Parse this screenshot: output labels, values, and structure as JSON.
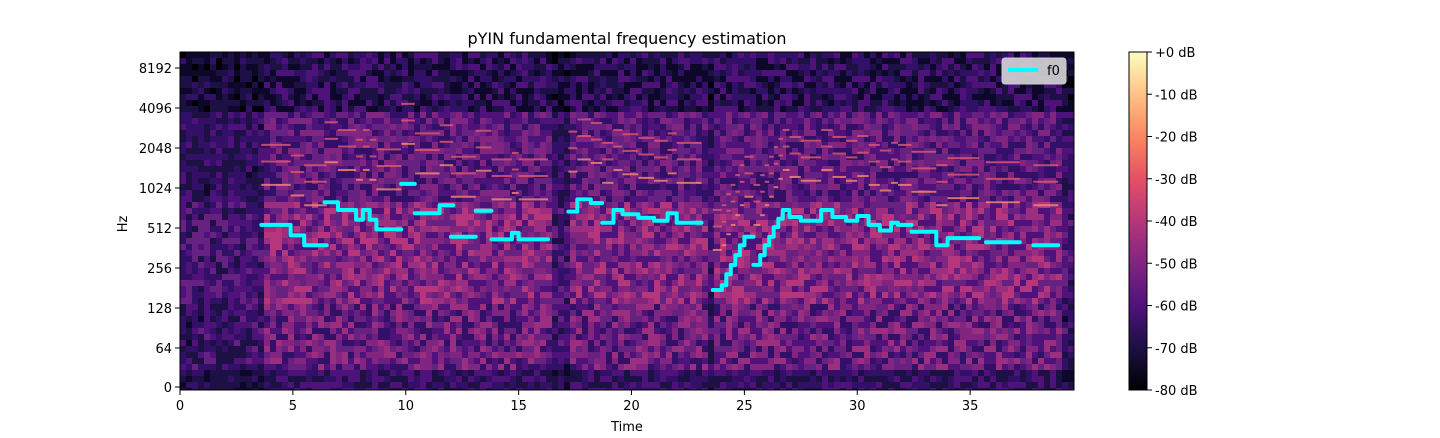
{
  "chart_data": {
    "type": "heatmap",
    "title": "pYIN fundamental frequency estimation",
    "xlabel": "Time",
    "ylabel": "Hz",
    "xlim": [
      0,
      39.6
    ],
    "y_scale": "log2 (with 0 at bottom)",
    "x_ticks": [
      0,
      5,
      10,
      15,
      20,
      25,
      30,
      35
    ],
    "x_tick_labels": [
      "0",
      "5",
      "10",
      "15",
      "20",
      "25",
      "30",
      "35"
    ],
    "y_ticks": [
      0,
      64,
      128,
      256,
      512,
      1024,
      2048,
      4096,
      8192
    ],
    "y_tick_labels": [
      "0",
      "64",
      "128",
      "256",
      "512",
      "1024",
      "2048",
      "4096",
      "8192"
    ],
    "colorbar": {
      "colormap": "magma",
      "range_db": [
        -80,
        0
      ],
      "tick_labels": [
        "+0 dB",
        "-10 dB",
        "-20 dB",
        "-30 dB",
        "-40 dB",
        "-50 dB",
        "-60 dB",
        "-70 dB",
        "-80 dB"
      ]
    },
    "legend": {
      "position": "upper-right",
      "entries": [
        "f0"
      ]
    },
    "series": [
      {
        "name": "f0",
        "color": "#00ffff",
        "segments": [
          [
            [
              3.6,
              540
            ],
            [
              4.9,
              540
            ],
            [
              4.9,
              450
            ],
            [
              5.5,
              450
            ],
            [
              5.5,
              380
            ],
            [
              6.5,
              380
            ]
          ],
          [
            [
              6.4,
              800
            ],
            [
              7.0,
              800
            ],
            [
              7.0,
              700
            ],
            [
              7.8,
              700
            ],
            [
              7.8,
              590
            ],
            [
              8.1,
              590
            ],
            [
              8.1,
              700
            ],
            [
              8.4,
              700
            ],
            [
              8.4,
              590
            ],
            [
              8.7,
              590
            ],
            [
              8.7,
              500
            ],
            [
              9.8,
              500
            ]
          ],
          [
            [
              9.8,
              1100
            ],
            [
              10.4,
              1100
            ]
          ],
          [
            [
              10.4,
              660
            ],
            [
              11.5,
              660
            ],
            [
              11.5,
              760
            ],
            [
              12.1,
              760
            ]
          ],
          [
            [
              12.0,
              440
            ],
            [
              13.1,
              440
            ]
          ],
          [
            [
              13.1,
              690
            ],
            [
              13.8,
              690
            ]
          ],
          [
            [
              13.8,
              420
            ],
            [
              14.7,
              420
            ],
            [
              14.7,
              470
            ],
            [
              15.0,
              470
            ],
            [
              15.0,
              420
            ],
            [
              16.3,
              420
            ]
          ],
          [
            [
              17.2,
              680
            ],
            [
              17.6,
              680
            ],
            [
              17.6,
              840
            ],
            [
              18.2,
              840
            ],
            [
              18.2,
              790
            ],
            [
              18.7,
              790
            ]
          ],
          [
            [
              18.7,
              560
            ],
            [
              19.2,
              560
            ],
            [
              19.2,
              700
            ],
            [
              19.6,
              700
            ],
            [
              19.6,
              650
            ],
            [
              20.3,
              650
            ],
            [
              20.3,
              610
            ],
            [
              21.0,
              610
            ],
            [
              21.0,
              580
            ],
            [
              21.6,
              580
            ],
            [
              21.6,
              660
            ],
            [
              22.0,
              660
            ],
            [
              22.0,
              560
            ],
            [
              23.1,
              560
            ]
          ],
          [
            [
              23.6,
              175
            ],
            [
              24.0,
              175
            ],
            [
              24.0,
              190
            ],
            [
              24.2,
              190
            ],
            [
              24.2,
              230
            ],
            [
              24.4,
              230
            ],
            [
              24.4,
              270
            ],
            [
              24.6,
              270
            ],
            [
              24.6,
              320
            ],
            [
              24.8,
              320
            ],
            [
              24.8,
              380
            ],
            [
              25.0,
              380
            ],
            [
              25.0,
              440
            ],
            [
              25.4,
              440
            ]
          ],
          [
            [
              25.4,
              270
            ],
            [
              25.7,
              270
            ],
            [
              25.7,
              320
            ],
            [
              25.9,
              320
            ],
            [
              25.9,
              380
            ],
            [
              26.1,
              380
            ],
            [
              26.1,
              440
            ],
            [
              26.3,
              440
            ],
            [
              26.3,
              520
            ],
            [
              26.5,
              520
            ],
            [
              26.5,
              600
            ],
            [
              26.7,
              600
            ],
            [
              26.7,
              700
            ],
            [
              27.0,
              700
            ],
            [
              27.0,
              620
            ],
            [
              27.5,
              620
            ],
            [
              27.5,
              580
            ],
            [
              28.4,
              580
            ],
            [
              28.4,
              700
            ],
            [
              28.9,
              700
            ],
            [
              28.9,
              620
            ],
            [
              29.5,
              620
            ],
            [
              29.5,
              580
            ],
            [
              30.0,
              580
            ],
            [
              30.0,
              630
            ],
            [
              30.5,
              630
            ],
            [
              30.5,
              540
            ],
            [
              31.0,
              540
            ],
            [
              31.0,
              490
            ],
            [
              31.5,
              490
            ],
            [
              31.5,
              560
            ],
            [
              31.8,
              560
            ],
            [
              31.8,
              540
            ],
            [
              32.4,
              540
            ]
          ],
          [
            [
              32.4,
              480
            ],
            [
              33.5,
              480
            ],
            [
              33.5,
              380
            ],
            [
              34.0,
              380
            ],
            [
              34.0,
              430
            ],
            [
              35.4,
              430
            ]
          ],
          [
            [
              35.7,
              400
            ],
            [
              37.2,
              400
            ]
          ],
          [
            [
              37.8,
              380
            ],
            [
              38.9,
              380
            ]
          ]
        ]
      }
    ]
  }
}
